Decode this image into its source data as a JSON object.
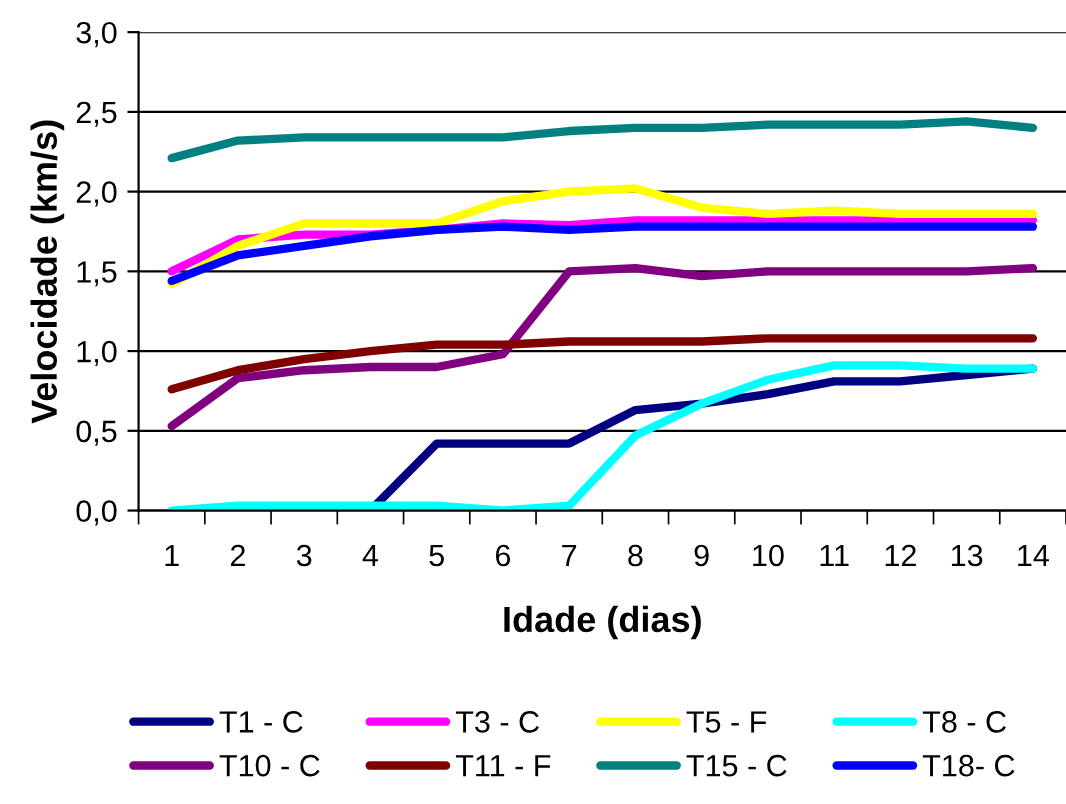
{
  "chart_data": {
    "type": "line",
    "xlabel": "Idade (dias)",
    "ylabel": "Velocidade (km/s)",
    "categories": [
      "1",
      "2",
      "3",
      "4",
      "5",
      "6",
      "7",
      "8",
      "9",
      "10",
      "11",
      "12",
      "13",
      "14"
    ],
    "ylim": [
      0,
      3.0
    ],
    "yticks": [
      {
        "value": 0,
        "label": "0,0"
      },
      {
        "value": 0.5,
        "label": "0,5"
      },
      {
        "value": 1.0,
        "label": "1,0"
      },
      {
        "value": 1.5,
        "label": "1,5"
      },
      {
        "value": 2.0,
        "label": "2,0"
      },
      {
        "value": 2.5,
        "label": "2,5"
      },
      {
        "value": 3.0,
        "label": "3,0"
      }
    ],
    "grid": "y",
    "legend": "bottom",
    "marker": "none",
    "line_style": "solid",
    "series": [
      {
        "name": "T1 - C",
        "color": "#000080",
        "values": [
          null,
          null,
          0,
          0,
          0.42,
          0.42,
          0.42,
          0.63,
          0.67,
          0.73,
          0.81,
          0.81,
          0.85,
          0.89
        ]
      },
      {
        "name": "T3 - C",
        "color": "#ff00ff",
        "values": [
          1.5,
          1.7,
          1.73,
          1.73,
          1.76,
          1.8,
          1.79,
          1.82,
          1.82,
          1.82,
          1.82,
          1.82,
          1.82,
          1.82
        ]
      },
      {
        "name": "T5 - F",
        "color": "#ffff00",
        "values": [
          1.42,
          1.66,
          1.8,
          1.8,
          1.8,
          1.94,
          2.0,
          2.02,
          1.9,
          1.86,
          1.88,
          1.86,
          1.86,
          1.86
        ]
      },
      {
        "name": "T8 - C",
        "color": "#00ffff",
        "values": [
          0,
          0.03,
          0.03,
          0.03,
          0.03,
          0,
          0.03,
          0.47,
          0.67,
          0.82,
          0.91,
          0.91,
          0.89,
          0.89
        ]
      },
      {
        "name": "T10 - C",
        "color": "#800080",
        "values": [
          0.53,
          0.83,
          0.88,
          0.9,
          0.9,
          0.98,
          1.5,
          1.52,
          1.47,
          1.5,
          1.5,
          1.5,
          1.5,
          1.52
        ]
      },
      {
        "name": "T11 - F",
        "color": "#800000",
        "values": [
          0.76,
          0.88,
          0.95,
          1.0,
          1.04,
          1.04,
          1.06,
          1.06,
          1.06,
          1.08,
          1.08,
          1.08,
          1.08,
          1.08
        ]
      },
      {
        "name": "T15 - C",
        "color": "#008080",
        "values": [
          2.21,
          2.32,
          2.34,
          2.34,
          2.34,
          2.34,
          2.38,
          2.4,
          2.4,
          2.42,
          2.42,
          2.42,
          2.44,
          2.4
        ]
      },
      {
        "name": "T18- C",
        "color": "#0000ff",
        "values": [
          1.44,
          1.6,
          1.66,
          1.72,
          1.76,
          1.78,
          1.76,
          1.78,
          1.78,
          1.78,
          1.78,
          1.78,
          1.78,
          1.78
        ]
      }
    ]
  }
}
